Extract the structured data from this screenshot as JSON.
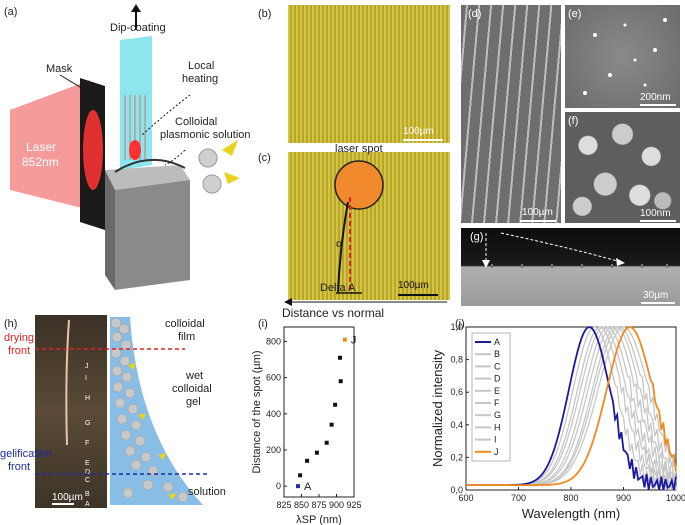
{
  "panels": {
    "a": {
      "label": "(a)",
      "dip": "Dip-coating",
      "local1": "Local",
      "local2": "heating",
      "mask": "Mask",
      "laser1": "Laser",
      "laser2": "852nm",
      "colloidal1": "Colloidal",
      "colloidal2": "plasmonic solution"
    },
    "b": {
      "label": "(b)",
      "scale": "100µm"
    },
    "c": {
      "label": "(c)",
      "spot": "laser spot",
      "alpha": "α",
      "delta": "Delta A",
      "scale": "100µm",
      "caption": "Distance vs normal"
    },
    "d": {
      "label": "(d)",
      "scale": "100µm"
    },
    "e": {
      "label": "(e)",
      "scale": "200nm"
    },
    "f": {
      "label": "(f)",
      "scale": "100nm"
    },
    "g": {
      "label": "(g)",
      "scale": "30µm"
    },
    "h": {
      "label": "(h)",
      "film1": "colloidal",
      "film2": "film",
      "drying1": "drying",
      "drying2": "front",
      "gel1": "wet",
      "gel2": "colloidal",
      "gel3": "gel",
      "gelif1": "gelification",
      "gelif2": "front",
      "solution": "solution",
      "scale": "100µm",
      "markers": [
        "J",
        "I",
        "H",
        "G",
        "F",
        "E",
        "D",
        "C",
        "B",
        "A"
      ]
    },
    "i": {
      "label": "(i)"
    },
    "j": {
      "label": "(j)"
    }
  },
  "chart_data": [
    {
      "type": "scatter",
      "panel": "i",
      "xlabel": "λSP (nm)",
      "ylabel": "Distance of the spot (µm)",
      "xlim": [
        825,
        925
      ],
      "ylim": [
        -60,
        880
      ],
      "xticks": [
        "825",
        "850",
        "875",
        "900",
        "925"
      ],
      "yticks": [
        "0",
        "200",
        "400",
        "600",
        "800"
      ],
      "points": [
        {
          "x": 845,
          "y": 0,
          "label": "A",
          "color": "#1f2fa8"
        },
        {
          "x": 848,
          "y": 60,
          "label": "",
          "color": "#111111"
        },
        {
          "x": 858,
          "y": 140,
          "label": "",
          "color": "#111111"
        },
        {
          "x": 872,
          "y": 185,
          "label": "",
          "color": "#111111"
        },
        {
          "x": 886,
          "y": 240,
          "label": "",
          "color": "#111111"
        },
        {
          "x": 893,
          "y": 340,
          "label": "",
          "color": "#111111"
        },
        {
          "x": 898,
          "y": 450,
          "label": "",
          "color": "#111111"
        },
        {
          "x": 906,
          "y": 580,
          "label": "",
          "color": "#111111"
        },
        {
          "x": 905,
          "y": 710,
          "label": "",
          "color": "#111111"
        },
        {
          "x": 912,
          "y": 810,
          "label": "J",
          "color": "#f08a1c"
        }
      ]
    },
    {
      "type": "line",
      "panel": "j",
      "xlabel": "Wavelength (nm)",
      "ylabel": "Normalized intensity",
      "xlim": [
        600,
        1000
      ],
      "ylim": [
        0,
        1.0
      ],
      "xticks": [
        "600",
        "700",
        "800",
        "900",
        "1000"
      ],
      "yticks": [
        "0,0",
        "0,2",
        "0,4",
        "0,6",
        "0,8",
        "1,0"
      ],
      "ytick_values": [
        0,
        0.2,
        0.4,
        0.6,
        0.8,
        1.0
      ],
      "xtick_values": [
        600,
        700,
        800,
        900,
        1000
      ],
      "series": [
        {
          "name": "A",
          "color": "#1a1aa0",
          "peak": 835,
          "width": 55
        },
        {
          "name": "B",
          "color": "#c6c6c6",
          "peak": 845,
          "width": 58
        },
        {
          "name": "C",
          "color": "#c6c6c6",
          "peak": 855,
          "width": 60
        },
        {
          "name": "D",
          "color": "#c6c6c6",
          "peak": 862,
          "width": 62
        },
        {
          "name": "E",
          "color": "#c6c6c6",
          "peak": 870,
          "width": 62
        },
        {
          "name": "F",
          "color": "#c6c6c6",
          "peak": 878,
          "width": 64
        },
        {
          "name": "G",
          "color": "#c6c6c6",
          "peak": 886,
          "width": 64
        },
        {
          "name": "H",
          "color": "#c6c6c6",
          "peak": 892,
          "width": 66
        },
        {
          "name": "I",
          "color": "#c6c6c6",
          "peak": 900,
          "width": 68
        },
        {
          "name": "J",
          "color": "#f08a1c",
          "peak": 912,
          "width": 62
        }
      ]
    }
  ]
}
